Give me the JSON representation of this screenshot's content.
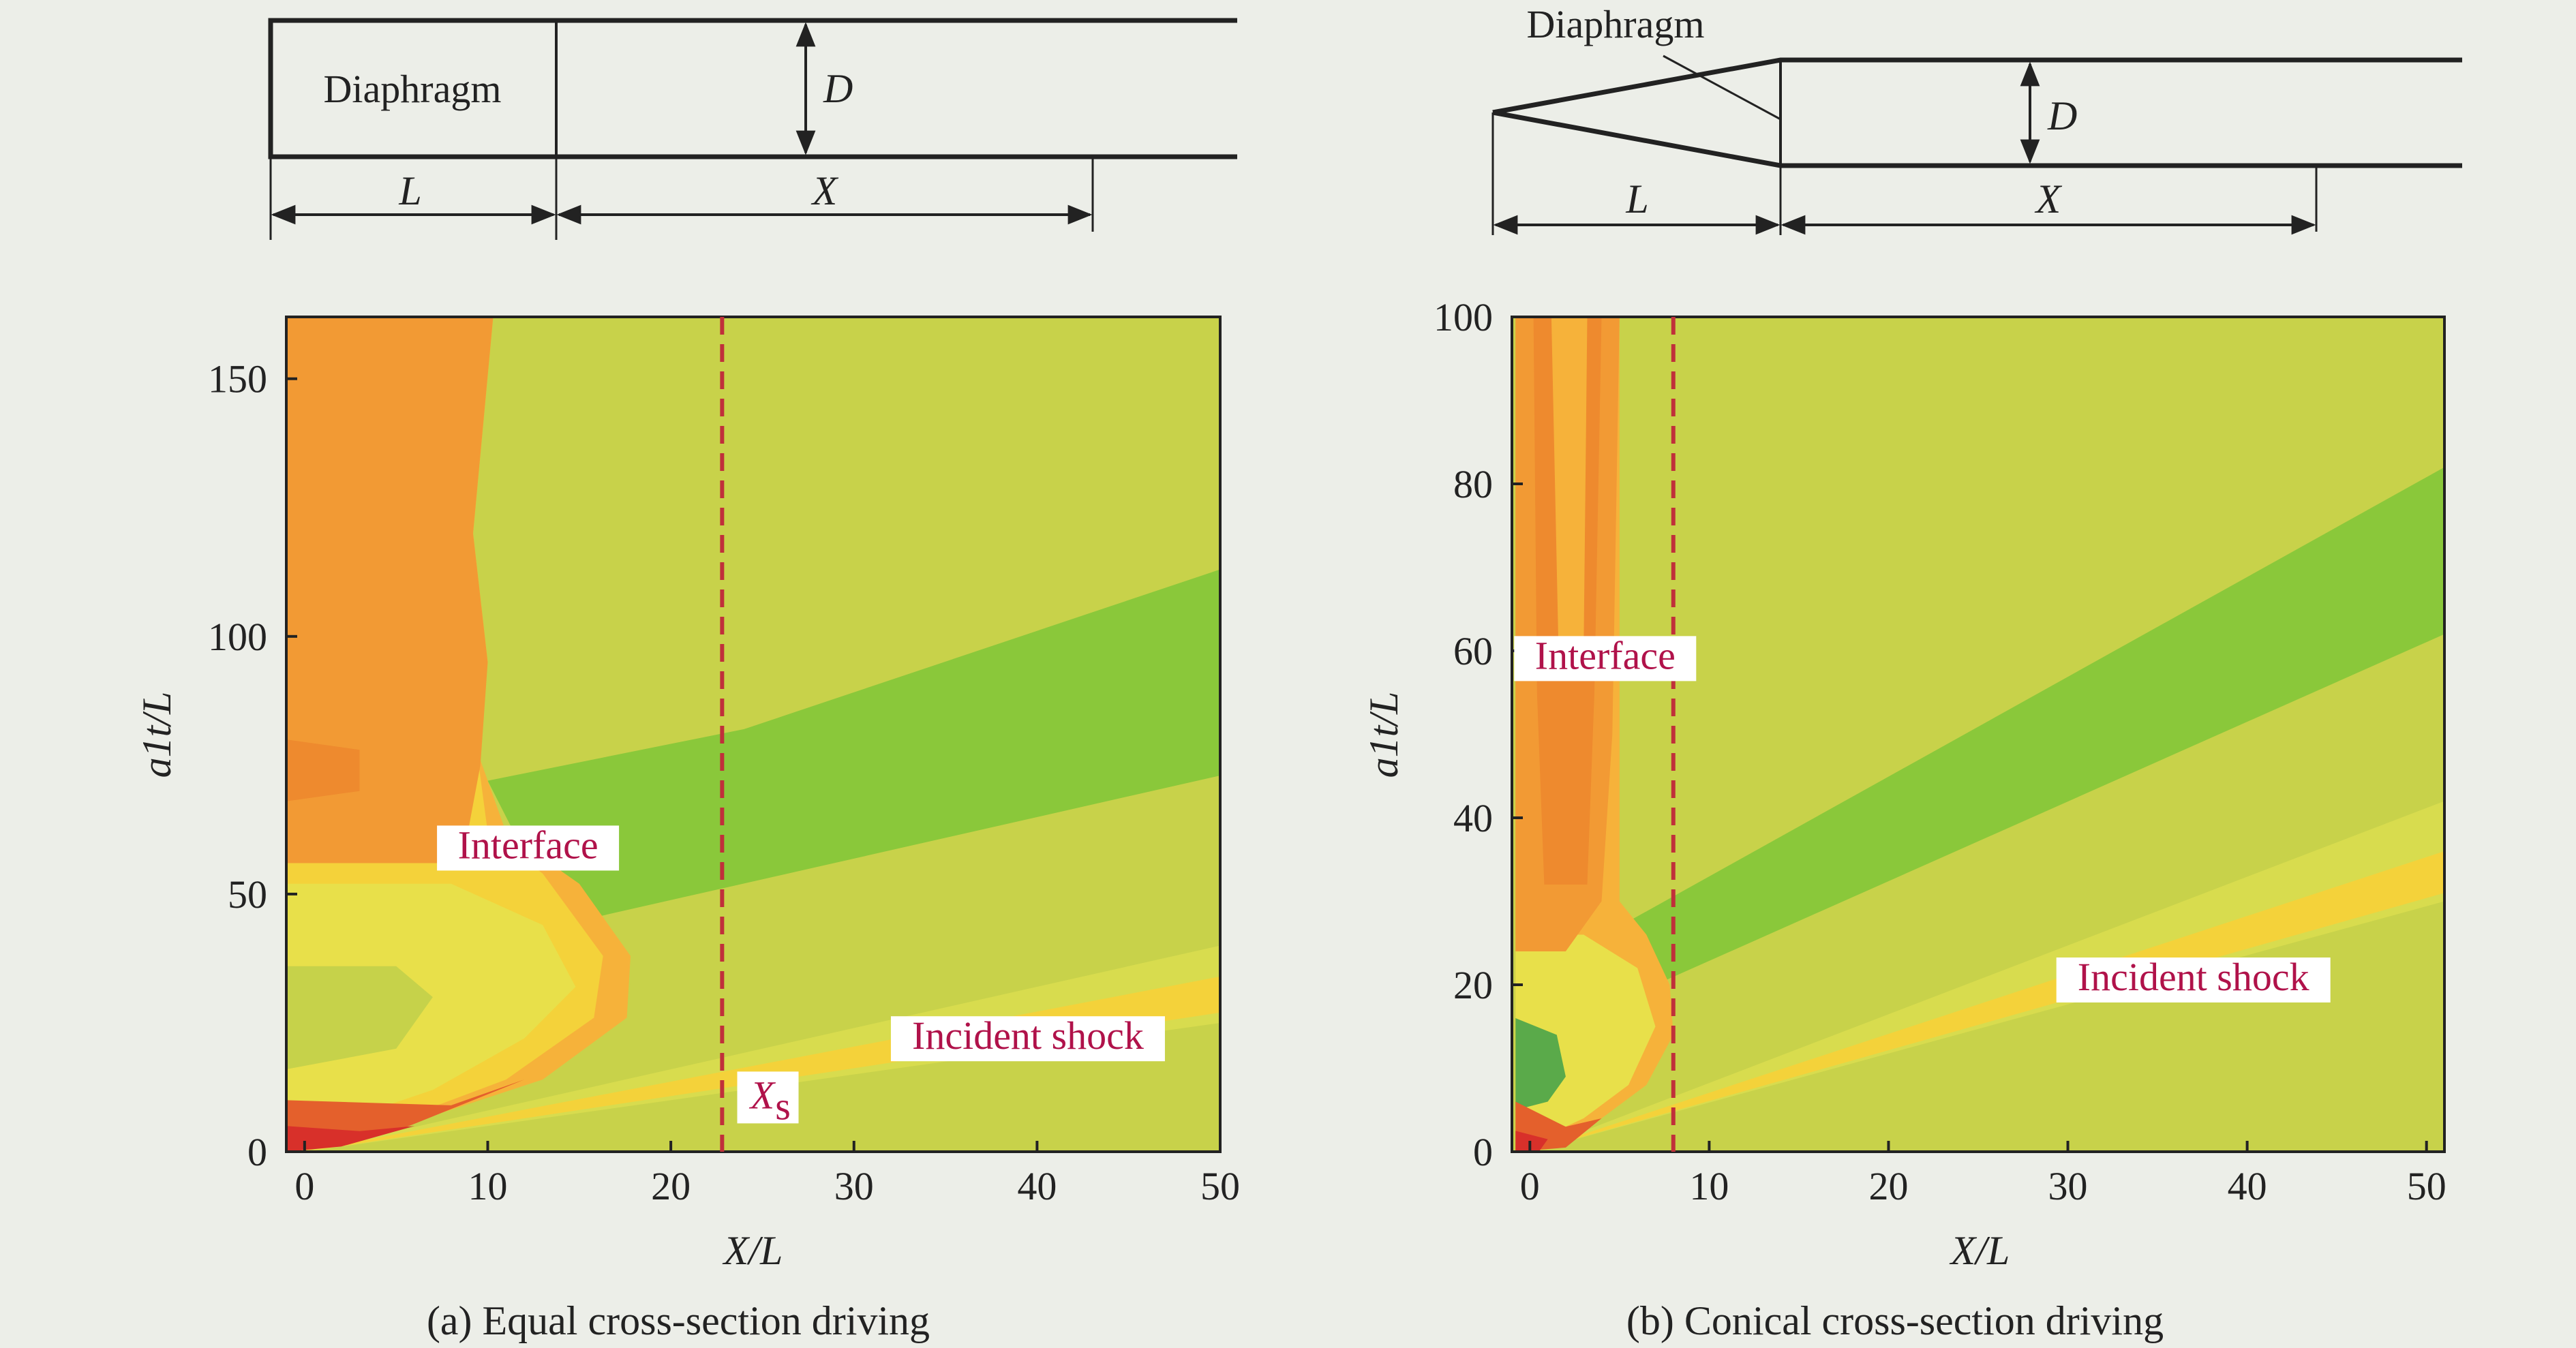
{
  "colors": {
    "background": "#eceee8",
    "annotation_text": "#b0124a",
    "marker_line": "#c0303a",
    "levels": [
      "#c8d24a",
      "#8ac83a",
      "#e8e04a",
      "#f4d23a",
      "#f6b23a",
      "#f29a34",
      "#ee8a2e",
      "#e4602c",
      "#d8302a",
      "#5aaa4a"
    ]
  },
  "panel_a": {
    "schematic": {
      "diaphragm_label": "Diaphragm",
      "length_label": "L",
      "position_label": "X",
      "diameter_label": "D"
    },
    "caption": "(a) Equal cross-section driving"
  },
  "panel_b": {
    "schematic": {
      "diaphragm_label": "Diaphragm",
      "length_label": "L",
      "position_label": "X",
      "diameter_label": "D"
    },
    "caption": "(b) Conical cross-section driving"
  },
  "chart_data": [
    {
      "type": "heatmap",
      "description_source": "contour x–t diagram",
      "xlabel": "X/L",
      "ylabel": "a1t/L",
      "xlim": [
        -1,
        50
      ],
      "ylim": [
        0,
        162
      ],
      "x_ticks": [
        0,
        10,
        20,
        30,
        40,
        50
      ],
      "y_ticks": [
        0,
        50,
        100,
        150
      ],
      "annotations": [
        {
          "text": "Interface",
          "x": 12.2,
          "y": 58
        },
        {
          "text": "Incident shock",
          "x": 39.5,
          "y": 21
        },
        {
          "text": "X",
          "sub": "s",
          "x": 25.3,
          "y": 10
        }
      ],
      "marker_line": {
        "x": 22.8,
        "style": "dashed"
      },
      "features": {
        "interface_x_upper": 10,
        "interface_bulge_max_x": 17.8,
        "interface_bulge_y": 32,
        "incident_shock": {
          "x": [
            0,
            50
          ],
          "y": [
            0,
            30
          ]
        },
        "green_band": {
          "lower": {
            "x": [
              14,
              50
            ],
            "y": [
              44,
              73
            ]
          },
          "upper": {
            "x": [
              10,
              50
            ],
            "y": [
              72,
              113
            ]
          }
        }
      }
    },
    {
      "type": "heatmap",
      "description_source": "contour x–t diagram",
      "xlabel": "X/L",
      "ylabel": "a1t/L",
      "xlim": [
        -1,
        51
      ],
      "ylim": [
        0,
        100
      ],
      "x_ticks": [
        0,
        10,
        20,
        30,
        40,
        50
      ],
      "y_ticks": [
        0,
        20,
        40,
        60,
        80,
        100
      ],
      "annotations": [
        {
          "text": "Interface",
          "x": 4.2,
          "y": 58.5
        },
        {
          "text": "Incident shock",
          "x": 37,
          "y": 20
        }
      ],
      "marker_line": {
        "x": 8.0,
        "style": "dashed"
      },
      "features": {
        "interface_x": 5,
        "interface_bulge_max_x": 8,
        "interface_bulge_y": 17,
        "incident_shock": {
          "x": [
            0,
            51
          ],
          "y": [
            0,
            33
          ]
        },
        "green_band": {
          "lower": {
            "x": [
              5,
              51
            ],
            "y": [
              13,
              62
            ]
          },
          "upper": {
            "x": [
              5,
              51
            ],
            "y": [
              27,
              82
            ]
          }
        }
      }
    }
  ]
}
